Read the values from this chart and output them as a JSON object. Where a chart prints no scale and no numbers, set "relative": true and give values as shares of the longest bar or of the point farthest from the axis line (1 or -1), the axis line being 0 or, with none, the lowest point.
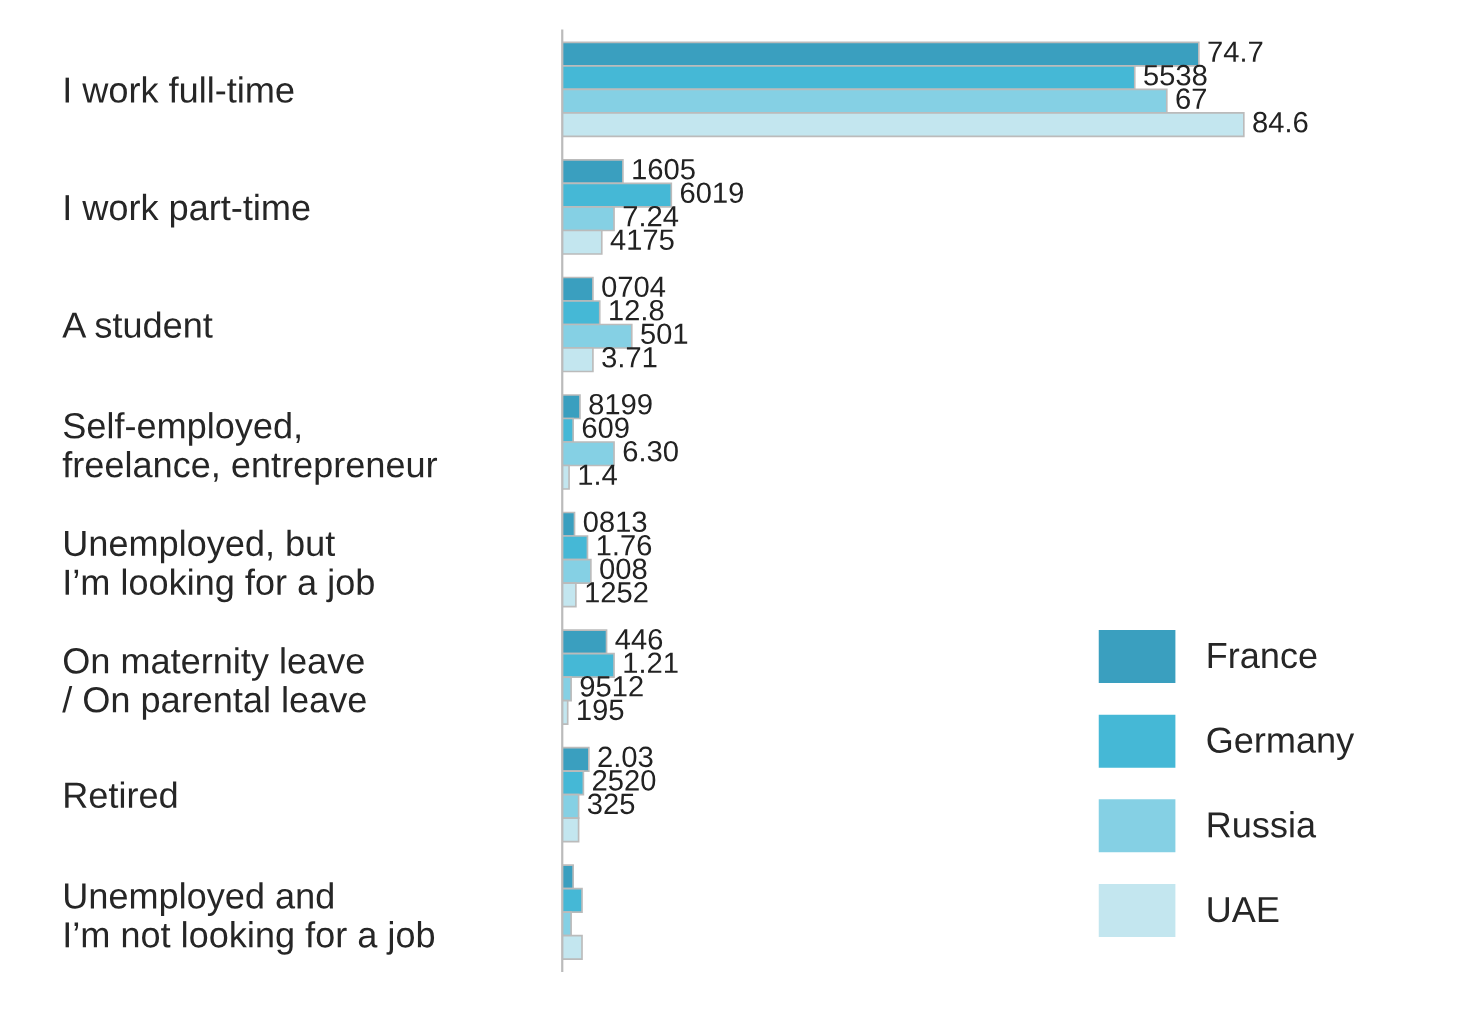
{
  "chart_data": {
    "type": "bar",
    "orientation": "horizontal",
    "relative": true,
    "legend": "bottom right",
    "categories": [
      "I work full-time",
      "I work part-time",
      "A student",
      "Self-employed,\nfreelance, entrepreneur",
      "Unemployed, but\nI’m looking for a job",
      "On maternity leave\n/ On parental leave",
      "Retired",
      "Unemployed and\nI’m not looking for a job"
    ],
    "series": [
      {
        "name": "France",
        "color": "#3a9fbf",
        "values": [
          0.934,
          0.089,
          0.045,
          0.026,
          0.018,
          0.065,
          0.039,
          0.016
        ]
      },
      {
        "name": "Germany",
        "color": "#45b8d6",
        "values": [
          0.84,
          0.16,
          0.055,
          0.016,
          0.037,
          0.076,
          0.031,
          0.029
        ]
      },
      {
        "name": "Russia",
        "color": "#85d0e4",
        "values": [
          0.887,
          0.076,
          0.102,
          0.076,
          0.042,
          0.013,
          0.024,
          0.013
        ]
      },
      {
        "name": "UAE",
        "color": "#c3e6ef",
        "values": [
          1,
          0.058,
          0.045,
          0.01,
          0.02,
          0.008,
          0.024,
          0.029
        ]
      }
    ],
    "annotations": [
      "74.7",
      "5538",
      "67",
      "84.6",
      "1605",
      "6019",
      "7.24",
      "4175",
      "0704",
      "12.8",
      "501",
      "3.71",
      "8199",
      "609",
      "6.30",
      "1.4",
      "0813",
      "1.76",
      "008",
      "1252",
      "446",
      "1.21",
      "9512",
      "195",
      "2.03",
      "2520",
      "325"
    ]
  }
}
